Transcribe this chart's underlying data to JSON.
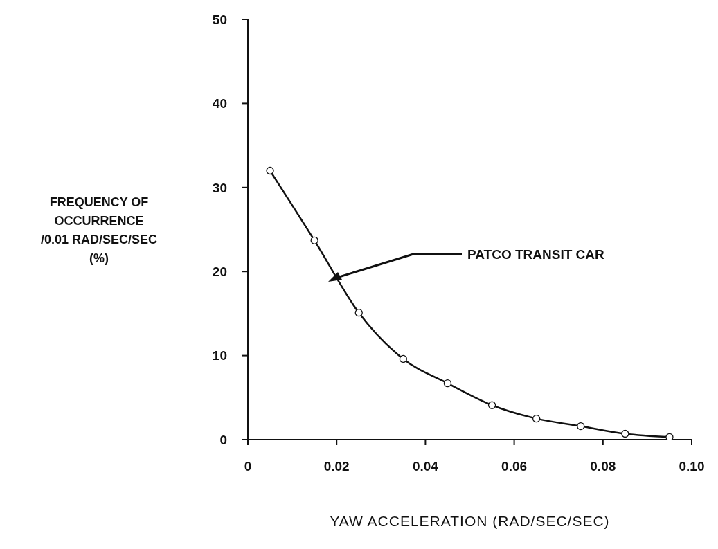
{
  "chart_data": {
    "type": "line",
    "xlabel": "YAW ACCELERATION (RAD/SEC/SEC)",
    "ylabel": "FREQUENCY OF\nOCCURRENCE\n/0.01 RAD/SEC/SEC\n(%)",
    "x": [
      0.005,
      0.015,
      0.025,
      0.035,
      0.045,
      0.055,
      0.065,
      0.075,
      0.085,
      0.095
    ],
    "series": [
      {
        "color": "#111111",
        "values": [
          32,
          23.7,
          15.1,
          9.6,
          6.7,
          4.1,
          2.5,
          1.6,
          0.7,
          0.3
        ]
      }
    ],
    "xlim": [
      0,
      0.1
    ],
    "xticks": [
      0,
      {
        "value": 0.02,
        "label": "0.02"
      },
      {
        "value": 0.04,
        "label": "0.04"
      },
      {
        "value": 0.06,
        "label": "0.06"
      },
      {
        "value": 0.08,
        "label": "0.08"
      },
      {
        "value": 0.1,
        "label": "0.10"
      }
    ],
    "ylim": [
      0,
      50
    ],
    "yticks": [
      0,
      10,
      20,
      30,
      40,
      50
    ],
    "annotations": [
      "PATCO TRANSIT CAR"
    ],
    "grid": false,
    "legend": false,
    "marker": "circle",
    "line_style": "solid"
  }
}
